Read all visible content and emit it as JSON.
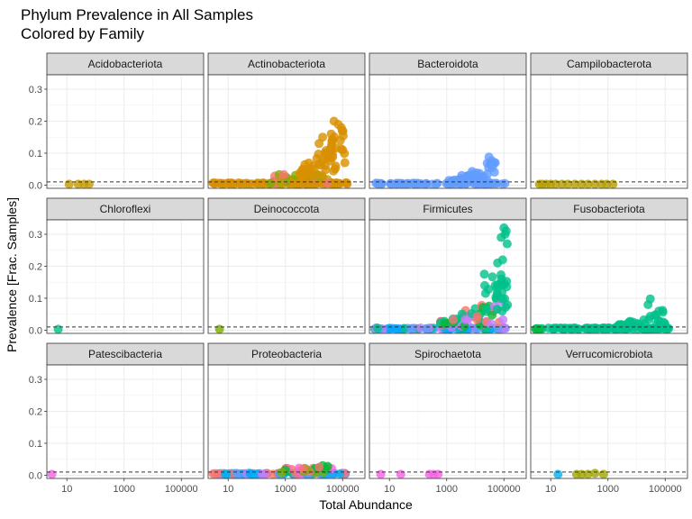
{
  "chart_data": {
    "type": "scatter",
    "title": "Phylum Prevalence in All Samples",
    "subtitle": "Colored by Family",
    "xlabel": "Total Abundance",
    "ylabel": "Prevalence [Frac. Samples]",
    "x_scale": "log10",
    "xlim": [
      2,
      600000
    ],
    "ylim": [
      -0.01,
      0.345
    ],
    "x_ticks": [
      10,
      1000,
      100000
    ],
    "x_tick_labels": [
      "10",
      "1000",
      "100000"
    ],
    "y_ticks": [
      0,
      0.1,
      0.2,
      0.3
    ],
    "y_tick_labels": [
      "0.0",
      "0.1",
      "0.2",
      "0.3"
    ],
    "reference_line": {
      "y": 0.01,
      "style": "dashed"
    },
    "grid": true,
    "legend": "none",
    "colors": {
      "olive": "#b79f00",
      "orange": "#d89000",
      "gold": "#c49a00",
      "blue": "#619cff",
      "green": "#00ba38",
      "teal": "#00c08b",
      "pink": "#f8766d",
      "magenta": "#f564e3",
      "cyan": "#00b4ef",
      "purple": "#c77cff",
      "lime": "#7cae00",
      "olivegreen": "#a3a500",
      "deepskyblue": "#00a9ff"
    },
    "panels": [
      {
        "name": "Acidobacteriota",
        "points": [
          {
            "x": 12,
            "y": 0.003,
            "c": "gold"
          },
          {
            "x": 25,
            "y": 0.003,
            "c": "gold"
          },
          {
            "x": 40,
            "y": 0.003,
            "c": "gold"
          },
          {
            "x": 60,
            "y": 0.003,
            "c": "gold"
          }
        ]
      },
      {
        "name": "Actinobacteriota",
        "points": [],
        "generated": "actino"
      },
      {
        "name": "Bacteroidota",
        "points": [],
        "generated": "bactero"
      },
      {
        "name": "Campilobacterota",
        "points": [
          {
            "x": 4,
            "y": 0.003,
            "c": "olive"
          },
          {
            "x": 5,
            "y": 0.003,
            "c": "olive"
          },
          {
            "x": 7,
            "y": 0.003,
            "c": "olive"
          },
          {
            "x": 10,
            "y": 0.003,
            "c": "olive"
          },
          {
            "x": 15,
            "y": 0.003,
            "c": "olive"
          },
          {
            "x": 25,
            "y": 0.003,
            "c": "olive"
          },
          {
            "x": 40,
            "y": 0.003,
            "c": "olive"
          },
          {
            "x": 70,
            "y": 0.003,
            "c": "olive"
          },
          {
            "x": 120,
            "y": 0.003,
            "c": "olive"
          },
          {
            "x": 200,
            "y": 0.003,
            "c": "olive"
          },
          {
            "x": 350,
            "y": 0.003,
            "c": "olive"
          },
          {
            "x": 600,
            "y": 0.003,
            "c": "olive"
          },
          {
            "x": 900,
            "y": 0.003,
            "c": "olive"
          },
          {
            "x": 1500,
            "y": 0.003,
            "c": "olive"
          }
        ]
      },
      {
        "name": "Chloroflexi",
        "points": [
          {
            "x": 5,
            "y": 0.003,
            "c": "teal"
          }
        ]
      },
      {
        "name": "Deinococcota",
        "points": [
          {
            "x": 5,
            "y": 0.003,
            "c": "lime"
          }
        ]
      },
      {
        "name": "Firmicutes",
        "points": [],
        "generated": "firmi"
      },
      {
        "name": "Fusobacteriota",
        "points": [],
        "generated": "fuso"
      },
      {
        "name": "Patescibacteria",
        "points": [
          {
            "x": 3,
            "y": 0.003,
            "c": "magenta"
          }
        ]
      },
      {
        "name": "Proteobacteria",
        "points": [],
        "generated": "proteo"
      },
      {
        "name": "Spirochaetota",
        "points": [
          {
            "x": 5,
            "y": 0.003,
            "c": "magenta"
          },
          {
            "x": 25,
            "y": 0.003,
            "c": "magenta"
          },
          {
            "x": 250,
            "y": 0.003,
            "c": "magenta"
          },
          {
            "x": 350,
            "y": 0.003,
            "c": "magenta"
          },
          {
            "x": 500,
            "y": 0.003,
            "c": "magenta"
          }
        ]
      },
      {
        "name": "Verrucomicrobiota",
        "points": [
          {
            "x": 18,
            "y": 0.003,
            "c": "cyan"
          },
          {
            "x": 80,
            "y": 0.003,
            "c": "olivegreen"
          },
          {
            "x": 120,
            "y": 0.003,
            "c": "olivegreen"
          },
          {
            "x": 200,
            "y": 0.003,
            "c": "olivegreen"
          },
          {
            "x": 350,
            "y": 0.006,
            "c": "olivegreen"
          },
          {
            "x": 700,
            "y": 0.003,
            "c": "olivegreen"
          }
        ]
      }
    ]
  }
}
